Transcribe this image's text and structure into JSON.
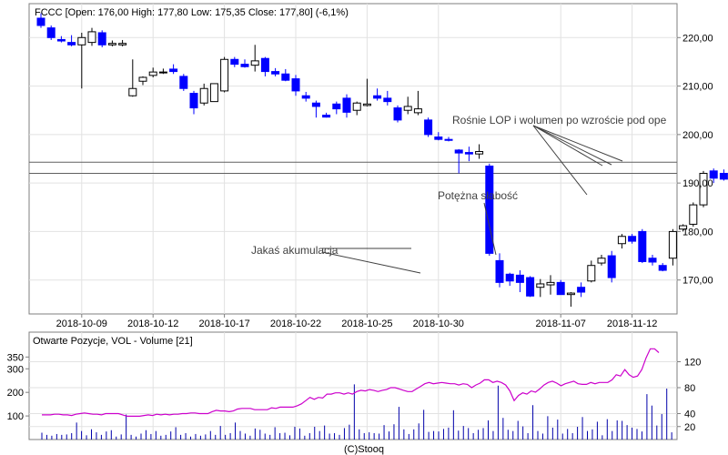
{
  "chart_data": [
    {
      "type": "candlestick",
      "title": "FCCC [Open: 176,00  High: 177,80  Low: 175,35  Close: 177,80]  (-6,1%)",
      "up_color": "#ffffff",
      "down_color": "#0000ff",
      "y_range": [
        163,
        227
      ],
      "y_ticks": [
        "220,00",
        "210,00",
        "200,00",
        "190,00",
        "180,00",
        "170,00"
      ],
      "y_tick_values": [
        220,
        210,
        200,
        190,
        180,
        170
      ],
      "x_labels": [
        {
          "label": "2018-10-09",
          "index": 4
        },
        {
          "label": "2018-10-12",
          "index": 11
        },
        {
          "label": "2018-10-17",
          "index": 18
        },
        {
          "label": "2018-10-22",
          "index": 25
        },
        {
          "label": "2018-10-25",
          "index": 32
        },
        {
          "label": "2018-10-30",
          "index": 39
        },
        {
          "label": "2018-11-07",
          "index": 51
        },
        {
          "label": "2018-11-12",
          "index": 58
        }
      ],
      "horizontal_lines": [
        194.3,
        192.0
      ],
      "candles": [
        {
          "o": 224.0,
          "h": 225.0,
          "l": 222.0,
          "c": 222.5
        },
        {
          "o": 222.0,
          "h": 222.5,
          "l": 219.5,
          "c": 220.0
        },
        {
          "o": 219.6,
          "h": 220.3,
          "l": 219.0,
          "c": 219.3
        },
        {
          "o": 219.0,
          "h": 220.5,
          "l": 218.2,
          "c": 218.5
        },
        {
          "o": 218.5,
          "h": 221.0,
          "l": 209.5,
          "c": 220.0
        },
        {
          "o": 219.0,
          "h": 222.0,
          "l": 218.3,
          "c": 221.2
        },
        {
          "o": 221.0,
          "h": 221.5,
          "l": 218.0,
          "c": 218.5
        },
        {
          "o": 218.5,
          "h": 219.4,
          "l": 218.2,
          "c": 218.8
        },
        {
          "o": 218.5,
          "h": 219.5,
          "l": 218.2,
          "c": 218.8
        },
        {
          "o": 208.0,
          "h": 215.5,
          "l": 207.8,
          "c": 209.5
        },
        {
          "o": 211.0,
          "h": 212.0,
          "l": 210.2,
          "c": 211.8
        },
        {
          "o": 212.2,
          "h": 213.8,
          "l": 211.8,
          "c": 212.9
        },
        {
          "o": 212.9,
          "h": 213.6,
          "l": 212.5,
          "c": 212.9
        },
        {
          "o": 213.5,
          "h": 214.5,
          "l": 212.5,
          "c": 213.0
        },
        {
          "o": 212.0,
          "h": 212.5,
          "l": 209.0,
          "c": 209.5
        },
        {
          "o": 208.5,
          "h": 209.0,
          "l": 204.2,
          "c": 205.5
        },
        {
          "o": 206.5,
          "h": 210.5,
          "l": 206.0,
          "c": 209.5
        },
        {
          "o": 206.8,
          "h": 210.5,
          "l": 206.8,
          "c": 210.5
        },
        {
          "o": 209.0,
          "h": 216.0,
          "l": 208.7,
          "c": 215.5
        },
        {
          "o": 215.5,
          "h": 216.0,
          "l": 213.9,
          "c": 214.5
        },
        {
          "o": 214.5,
          "h": 215.5,
          "l": 213.8,
          "c": 214.0
        },
        {
          "o": 214.3,
          "h": 218.5,
          "l": 213.0,
          "c": 215.2
        },
        {
          "o": 215.7,
          "h": 216.0,
          "l": 212.0,
          "c": 213.0
        },
        {
          "o": 213.0,
          "h": 213.7,
          "l": 212.0,
          "c": 212.5
        },
        {
          "o": 212.5,
          "h": 213.5,
          "l": 211.0,
          "c": 211.2
        },
        {
          "o": 211.5,
          "h": 212.3,
          "l": 208.0,
          "c": 209.0
        },
        {
          "o": 208.0,
          "h": 208.8,
          "l": 206.8,
          "c": 207.5
        },
        {
          "o": 206.5,
          "h": 207.0,
          "l": 203.5,
          "c": 205.8
        },
        {
          "o": 204.0,
          "h": 204.5,
          "l": 203.5,
          "c": 203.6
        },
        {
          "o": 206.3,
          "h": 206.8,
          "l": 204.2,
          "c": 205.3
        },
        {
          "o": 207.5,
          "h": 208.3,
          "l": 203.5,
          "c": 204.6
        },
        {
          "o": 205.0,
          "h": 206.8,
          "l": 204.0,
          "c": 206.5
        },
        {
          "o": 206.0,
          "h": 211.5,
          "l": 205.8,
          "c": 206.3
        },
        {
          "o": 208.0,
          "h": 209.5,
          "l": 207.0,
          "c": 207.5
        },
        {
          "o": 207.5,
          "h": 209.0,
          "l": 206.0,
          "c": 206.8
        },
        {
          "o": 205.5,
          "h": 206.0,
          "l": 202.5,
          "c": 203.0
        },
        {
          "o": 205.0,
          "h": 207.8,
          "l": 204.2,
          "c": 205.8
        },
        {
          "o": 204.5,
          "h": 209.0,
          "l": 204.0,
          "c": 205.3
        },
        {
          "o": 203.0,
          "h": 203.5,
          "l": 199.5,
          "c": 200.0
        },
        {
          "o": 199.5,
          "h": 200.5,
          "l": 198.8,
          "c": 199.0
        }
      ],
      "note": "candles are read left to right in chart order (first 40 of 61)",
      "annotations": [
        {
          "text": "Rośnie LOP i wolumen po wzroście pod ope"
        },
        {
          "text": "Potężna słabość"
        },
        {
          "text": "Jakaś akumulacja"
        }
      ]
    },
    {
      "type": "bar+line",
      "title": "Otwarte Pozycje, VOL - Volume [21]",
      "bar_color": "#0000aa",
      "line_color": "#cc00cc",
      "left_ticks": [
        "350",
        "300",
        "200",
        "100"
      ],
      "left_tick_values": [
        350,
        300,
        200,
        100
      ],
      "right_ticks": [
        "120",
        "80",
        "40",
        "20"
      ],
      "right_tick_values": [
        120,
        80,
        40,
        20
      ]
    }
  ],
  "footer": "(C)Stooq"
}
